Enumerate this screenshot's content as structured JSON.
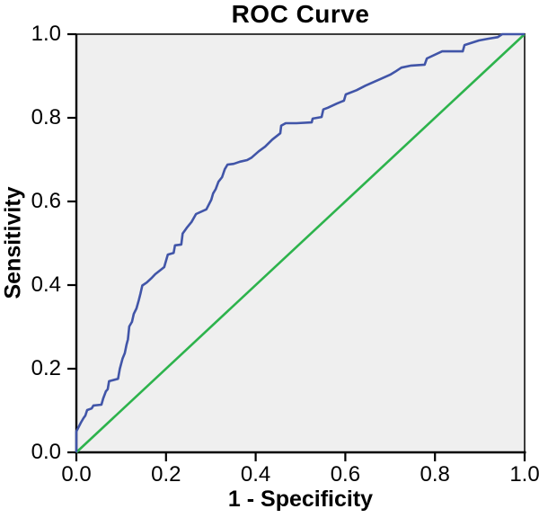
{
  "chart_data": {
    "type": "line",
    "title": "ROC Curve",
    "xlabel": "1 - Specificity",
    "ylabel": "Sensitivity",
    "xlim": [
      0.0,
      1.0
    ],
    "ylim": [
      0.0,
      1.0
    ],
    "x_tick_values": [
      0.0,
      0.2,
      0.4,
      0.6,
      0.8,
      1.0
    ],
    "y_tick_values": [
      0.0,
      0.2,
      0.4,
      0.6,
      0.8,
      1.0
    ],
    "x_tick_labels": [
      "0.0",
      "0.2",
      "0.4",
      "0.6",
      "0.8",
      "1.0"
    ],
    "y_tick_labels": [
      "0.0",
      "0.2",
      "0.4",
      "0.6",
      "0.8",
      "1.0"
    ],
    "grid": false,
    "legend": "none",
    "plot_background": "#efefef",
    "frame_color": "#3c3c3c",
    "axis_color": "#000000",
    "series": [
      {
        "name": "reference-diagonal",
        "color": "#2db34c",
        "stroke_width": 2.6,
        "points": [
          [
            0.0,
            0.0
          ],
          [
            1.0,
            1.0
          ]
        ]
      },
      {
        "name": "roc-curve",
        "color": "#4155a8",
        "stroke_width": 2.6,
        "points": [
          [
            0.0,
            0.0
          ],
          [
            0.0,
            0.05
          ],
          [
            0.01,
            0.071
          ],
          [
            0.016,
            0.082
          ],
          [
            0.02,
            0.088
          ],
          [
            0.024,
            0.101
          ],
          [
            0.034,
            0.105
          ],
          [
            0.038,
            0.112
          ],
          [
            0.056,
            0.114
          ],
          [
            0.06,
            0.129
          ],
          [
            0.066,
            0.146
          ],
          [
            0.07,
            0.151
          ],
          [
            0.073,
            0.17
          ],
          [
            0.093,
            0.176
          ],
          [
            0.097,
            0.2
          ],
          [
            0.103,
            0.224
          ],
          [
            0.108,
            0.237
          ],
          [
            0.112,
            0.258
          ],
          [
            0.115,
            0.27
          ],
          [
            0.118,
            0.301
          ],
          [
            0.124,
            0.312
          ],
          [
            0.128,
            0.331
          ],
          [
            0.134,
            0.344
          ],
          [
            0.139,
            0.363
          ],
          [
            0.143,
            0.38
          ],
          [
            0.147,
            0.399
          ],
          [
            0.157,
            0.406
          ],
          [
            0.167,
            0.416
          ],
          [
            0.176,
            0.426
          ],
          [
            0.196,
            0.443
          ],
          [
            0.2,
            0.458
          ],
          [
            0.204,
            0.473
          ],
          [
            0.217,
            0.477
          ],
          [
            0.22,
            0.495
          ],
          [
            0.234,
            0.497
          ],
          [
            0.237,
            0.523
          ],
          [
            0.247,
            0.538
          ],
          [
            0.257,
            0.551
          ],
          [
            0.267,
            0.57
          ],
          [
            0.29,
            0.581
          ],
          [
            0.301,
            0.604
          ],
          [
            0.305,
            0.619
          ],
          [
            0.311,
            0.63
          ],
          [
            0.317,
            0.647
          ],
          [
            0.325,
            0.658
          ],
          [
            0.331,
            0.677
          ],
          [
            0.337,
            0.688
          ],
          [
            0.351,
            0.69
          ],
          [
            0.365,
            0.695
          ],
          [
            0.381,
            0.699
          ],
          [
            0.391,
            0.705
          ],
          [
            0.407,
            0.72
          ],
          [
            0.421,
            0.731
          ],
          [
            0.437,
            0.748
          ],
          [
            0.455,
            0.763
          ],
          [
            0.457,
            0.781
          ],
          [
            0.467,
            0.787
          ],
          [
            0.491,
            0.787
          ],
          [
            0.525,
            0.789
          ],
          [
            0.527,
            0.798
          ],
          [
            0.547,
            0.802
          ],
          [
            0.551,
            0.82
          ],
          [
            0.561,
            0.824
          ],
          [
            0.581,
            0.834
          ],
          [
            0.597,
            0.841
          ],
          [
            0.601,
            0.856
          ],
          [
            0.625,
            0.866
          ],
          [
            0.645,
            0.877
          ],
          [
            0.677,
            0.892
          ],
          [
            0.7,
            0.903
          ],
          [
            0.711,
            0.91
          ],
          [
            0.725,
            0.92
          ],
          [
            0.747,
            0.925
          ],
          [
            0.777,
            0.927
          ],
          [
            0.782,
            0.942
          ],
          [
            0.816,
            0.959
          ],
          [
            0.862,
            0.959
          ],
          [
            0.866,
            0.974
          ],
          [
            0.898,
            0.985
          ],
          [
            0.918,
            0.989
          ],
          [
            0.94,
            0.993
          ],
          [
            0.95,
            1.0
          ],
          [
            1.0,
            1.0
          ]
        ]
      }
    ]
  }
}
